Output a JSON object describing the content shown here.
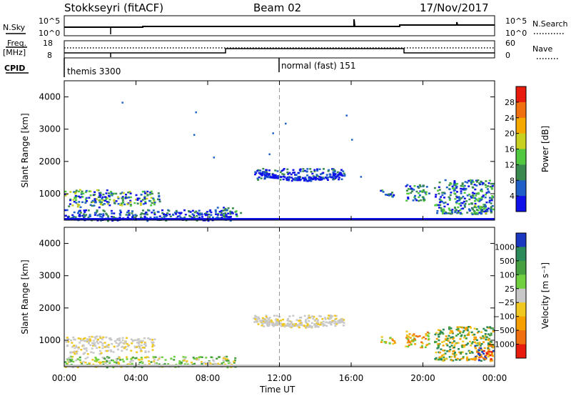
{
  "header": {
    "station": "Stokkseyri (fitACF)",
    "beam": "Beam 02",
    "date": "17/Nov/2017"
  },
  "aux_labels": {
    "nsky": "N.Sky",
    "freq_line1": "Freq.",
    "freq_line2": "[MHz]",
    "cpid": "CPID",
    "nsearch": "N.Search",
    "nave": "Nave",
    "nsky_ticks": [
      "10^5",
      "10^0"
    ],
    "nsearch_ticks": [
      "10^5",
      "10^0"
    ],
    "freq_ticks": [
      "18",
      "8"
    ],
    "nave_ticks": [
      "60",
      "0"
    ]
  },
  "cpid_segments": [
    {
      "label": "themis 3300",
      "start_hour": 0
    },
    {
      "label": "normal (fast) 151",
      "start_hour": 12
    }
  ],
  "chart_data": [
    {
      "type": "heatmap",
      "name": "power",
      "xlabel": "",
      "ylabel": "Slant Range [km]",
      "x_range_hours": [
        0,
        24
      ],
      "ylim": [
        180,
        4500
      ],
      "y_ticks": [
        1000,
        2000,
        3000,
        4000
      ],
      "colorbar": {
        "label": "Power [dB]",
        "ticks": [
          "28",
          "24",
          "20",
          "16",
          "12",
          "8",
          "4"
        ],
        "colors": [
          "#e81c0c",
          "#f07010",
          "#f5a800",
          "#c8d020",
          "#50c840",
          "#3a8a50",
          "#1e60c8",
          "#1010e8"
        ]
      },
      "patches": [
        {
          "t": [
            0.0,
            2.4
          ],
          "r": [
            600,
            1150
          ],
          "level": "high"
        },
        {
          "t": [
            2.4,
            5.0
          ],
          "r": [
            650,
            1100
          ],
          "level": "high"
        },
        {
          "t": [
            5.1,
            5.3
          ],
          "r": [
            750,
            1100
          ],
          "level": "low"
        },
        {
          "t": [
            0.0,
            9.5
          ],
          "r": [
            180,
            520
          ],
          "level": "low"
        },
        {
          "t": [
            8.5,
            9.8
          ],
          "r": [
            300,
            600
          ],
          "level": "mid"
        },
        {
          "t": [
            10.5,
            15.6
          ],
          "r": [
            1450,
            1800
          ],
          "level": "low"
        },
        {
          "t": [
            17.6,
            18.4
          ],
          "r": [
            900,
            1150
          ],
          "level": "mid"
        },
        {
          "t": [
            19.0,
            20.3
          ],
          "r": [
            800,
            1300
          ],
          "level": "mid"
        },
        {
          "t": [
            20.6,
            23.9
          ],
          "r": [
            380,
            1450
          ],
          "level": "mid"
        },
        {
          "t": [
            22.8,
            23.5
          ],
          "r": [
            380,
            700
          ],
          "level": "high"
        }
      ],
      "scatter_points": [
        [
          3.2,
          3850
        ],
        [
          7.3,
          3550
        ],
        [
          7.2,
          2850
        ],
        [
          8.3,
          2150
        ],
        [
          11.4,
          2250
        ],
        [
          11.6,
          2900
        ],
        [
          12.3,
          3200
        ],
        [
          15.7,
          3450
        ],
        [
          16.5,
          1550
        ],
        [
          16.0,
          2700
        ]
      ]
    },
    {
      "type": "heatmap",
      "name": "velocity",
      "xlabel": "Time UT",
      "ylabel": "Slant Range [km]",
      "x_range_hours": [
        0,
        24
      ],
      "ylim": [
        180,
        4500
      ],
      "x_ticks": [
        "00:00",
        "04:00",
        "08:00",
        "12:00",
        "16:00",
        "20:00",
        "00:00"
      ],
      "y_ticks": [
        1000,
        2000,
        3000,
        4000
      ],
      "colorbar": {
        "label": "Velocity [m s⁻¹]",
        "ticks": [
          "1000",
          "500",
          "100",
          "25",
          "−25",
          "−100",
          "−500",
          "−1000"
        ],
        "colors": [
          "#1a38c0",
          "#2a8a5a",
          "#46a040",
          "#70d040",
          "#c8c8c8",
          "#f0c820",
          "#f5a000",
          "#f07010",
          "#e81c0c"
        ]
      },
      "patches": [
        {
          "t": [
            0.0,
            2.4
          ],
          "r": [
            600,
            1150
          ],
          "level": "ground"
        },
        {
          "t": [
            2.4,
            5.0
          ],
          "r": [
            650,
            1100
          ],
          "level": "ground"
        },
        {
          "t": [
            0.0,
            9.5
          ],
          "r": [
            180,
            520
          ],
          "level": "slow"
        },
        {
          "t": [
            10.5,
            15.6
          ],
          "r": [
            1450,
            1800
          ],
          "level": "ground"
        },
        {
          "t": [
            17.6,
            18.4
          ],
          "r": [
            900,
            1150
          ],
          "level": "away"
        },
        {
          "t": [
            19.0,
            20.3
          ],
          "r": [
            800,
            1300
          ],
          "level": "away"
        },
        {
          "t": [
            20.6,
            23.9
          ],
          "r": [
            380,
            1450
          ],
          "level": "toward"
        },
        {
          "t": [
            22.8,
            23.9
          ],
          "r": [
            380,
            900
          ],
          "level": "strong_away"
        }
      ]
    }
  ]
}
